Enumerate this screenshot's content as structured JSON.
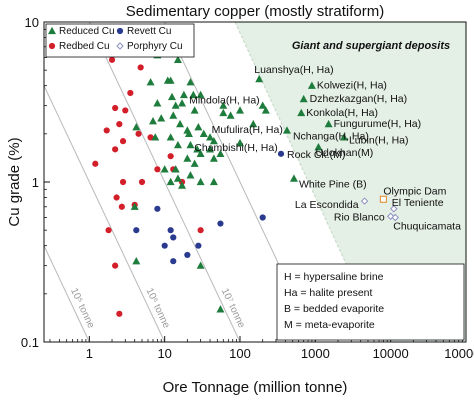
{
  "chart_data": {
    "type": "scatter",
    "title": "Sedimentary copper (mostly stratiform)",
    "xlabel": "Ore Tonnage (million tonne)",
    "ylabel": "Cu grade (%)",
    "xscale": "log",
    "yscale": "log",
    "xlim": [
      0.25,
      100000
    ],
    "ylim": [
      0.1,
      10
    ],
    "xticks": [
      "1",
      "10",
      "100",
      "1000",
      "10000",
      "100000"
    ],
    "yticks": [
      "0.1",
      "1",
      "10"
    ],
    "region_label": "Giant and supergiant deposits",
    "region_color": "#e4efe5",
    "legend_position": "top-left",
    "legend": [
      {
        "name": "Reduced Cu",
        "marker": "triangle",
        "color": "#1e7d3c"
      },
      {
        "name": "Revett Cu",
        "marker": "circle",
        "color": "#2a3a8f"
      },
      {
        "name": "Redbed Cu",
        "marker": "circle",
        "color": "#d21f2a"
      },
      {
        "name": "Porphyry Cu",
        "marker": "diamond-open",
        "color": "#8a8fbf"
      }
    ],
    "tonnage_lines": [
      {
        "label": "10⁴ tonne",
        "value": 0.01
      },
      {
        "label": "10⁵ tonne",
        "value": 0.1
      },
      {
        "label": "10⁶ tonne",
        "value": 1
      },
      {
        "label": "10⁷ tonne",
        "value": 10
      },
      {
        "label": "10⁸ tonne",
        "value": 100
      }
    ],
    "key": [
      "H = hypersaline brine",
      "Ha = halite present",
      "B = bedded evaporite",
      "M = meta-evaporite"
    ],
    "series": [
      {
        "name": "Reduced Cu",
        "marker": "triangle",
        "color": "#1e7d3c",
        "points": [
          [
            6,
            6.5
          ],
          [
            8,
            6.2
          ],
          [
            15,
            5.8
          ],
          [
            12,
            4.3
          ],
          [
            6.5,
            4.2
          ],
          [
            11,
            4.3
          ],
          [
            22,
            4.2
          ],
          [
            24,
            3.5
          ],
          [
            30,
            3.5
          ],
          [
            12.5,
            3.4
          ],
          [
            8,
            3.1
          ],
          [
            14,
            3.0
          ],
          [
            17,
            3.1
          ],
          [
            18,
            3.5
          ],
          [
            25,
            2.8
          ],
          [
            60,
            2.7
          ],
          [
            75,
            2.6
          ],
          [
            100,
            2.8
          ],
          [
            9,
            2.5
          ],
          [
            13,
            2.6
          ],
          [
            7,
            2.4
          ],
          [
            4.2,
            2.2
          ],
          [
            16,
            2.3
          ],
          [
            20,
            2.1
          ],
          [
            21,
            2.0
          ],
          [
            28,
            2.2
          ],
          [
            33,
            2.0
          ],
          [
            40,
            1.9
          ],
          [
            45,
            1.8
          ],
          [
            7.5,
            1.9
          ],
          [
            12,
            1.9
          ],
          [
            15,
            1.7
          ],
          [
            22,
            1.7
          ],
          [
            27,
            1.6
          ],
          [
            30,
            1.5
          ],
          [
            40,
            1.6
          ],
          [
            55,
            1.5
          ],
          [
            20,
            1.4
          ],
          [
            25,
            1.3
          ],
          [
            45,
            1.4
          ],
          [
            10,
            1.2
          ],
          [
            14,
            1.2
          ],
          [
            22,
            1.1
          ],
          [
            15,
            1.05
          ],
          [
            12,
            1.0
          ],
          [
            17,
            0.95
          ],
          [
            30,
            1.0
          ],
          [
            45,
            1.0
          ],
          [
            4,
            0.7
          ],
          [
            4.2,
            0.32
          ],
          [
            55,
            0.16
          ],
          [
            30,
            0.3
          ],
          [
            60,
            3.0
          ],
          [
            220,
            2.8
          ],
          {
            "x": 200,
            "y": 3.0,
            "label": "Mindola(H, Ha)"
          },
          {
            "x": 180,
            "y": 4.4,
            "label": "Luanshya(H, Ha)"
          },
          {
            "x": 900,
            "y": 4.0,
            "label": "Kolwezi(H, Ha)"
          },
          {
            "x": 700,
            "y": 3.3,
            "label": "Dzhezkazgan(H, Ha)"
          },
          {
            "x": 650,
            "y": 2.7,
            "label": "Konkola(H, Ha)"
          },
          {
            "x": 1500,
            "y": 2.3,
            "label": "Fungurume(H, Ha)"
          },
          {
            "x": 150,
            "y": 2.3,
            "label": "Mufulira(H, Ha)"
          },
          {
            "x": 420,
            "y": 2.1,
            "label": "Nchanga(H, Ha)"
          },
          {
            "x": 2400,
            "y": 1.9,
            "label": "Lubin(H, Ha)"
          },
          {
            "x": 100,
            "y": 1.75,
            "label": "Chambishi(H, Ha)"
          },
          {
            "x": 1100,
            "y": 1.65,
            "label": "Udokhan(M)"
          },
          {
            "x": 520,
            "y": 1.05,
            "label": "White Pine (B)"
          }
        ]
      },
      {
        "name": "Revett Cu",
        "marker": "circle",
        "color": "#2a3a8f",
        "points": [
          [
            4.2,
            0.5
          ],
          [
            8,
            0.68
          ],
          [
            10,
            0.4
          ],
          [
            12,
            0.5
          ],
          [
            13,
            0.45
          ],
          [
            13,
            0.32
          ],
          [
            20,
            0.35
          ],
          [
            28,
            0.4
          ],
          [
            55,
            0.55
          ],
          [
            200,
            0.6
          ],
          {
            "x": 350,
            "y": 1.5,
            "label": "Rock Ck.(M)"
          }
        ]
      },
      {
        "name": "Redbed Cu",
        "marker": "circle",
        "color": "#d21f2a",
        "points": [
          [
            2,
            5.8
          ],
          [
            4.8,
            5.2
          ],
          [
            3.5,
            3.6
          ],
          [
            2.2,
            2.9
          ],
          [
            3,
            2.8
          ],
          [
            2.5,
            2.3
          ],
          [
            1.7,
            2.1
          ],
          [
            4.5,
            2.0
          ],
          [
            2.8,
            1.8
          ],
          [
            2.2,
            1.6
          ],
          [
            6.5,
            1.9
          ],
          [
            1.2,
            1.3
          ],
          [
            2.8,
            1.0
          ],
          [
            8,
            1.2
          ],
          [
            12,
            1.45
          ],
          [
            13,
            1.2
          ],
          [
            17,
            1.0
          ],
          [
            2.3,
            0.8
          ],
          [
            2.7,
            0.7
          ],
          [
            4,
            0.72
          ],
          [
            1.8,
            0.5
          ],
          [
            2.2,
            0.3
          ],
          [
            2.5,
            0.15
          ],
          [
            30,
            0.5
          ],
          [
            5,
            1.0
          ]
        ]
      },
      {
        "name": "Porphyry Cu",
        "marker": "diamond-open",
        "color": "#8a8fbf",
        "points": [
          {
            "x": 8000,
            "y": 0.78,
            "label": "Olympic Dam"
          },
          {
            "x": 4500,
            "y": 0.76,
            "label": "La Escondida"
          },
          {
            "x": 11000,
            "y": 0.68,
            "label": "El Teniente"
          },
          {
            "x": 10000,
            "y": 0.61,
            "label": "Rio Blanco"
          },
          {
            "x": 11500,
            "y": 0.6,
            "label": "Chuquicamata"
          }
        ]
      }
    ]
  }
}
